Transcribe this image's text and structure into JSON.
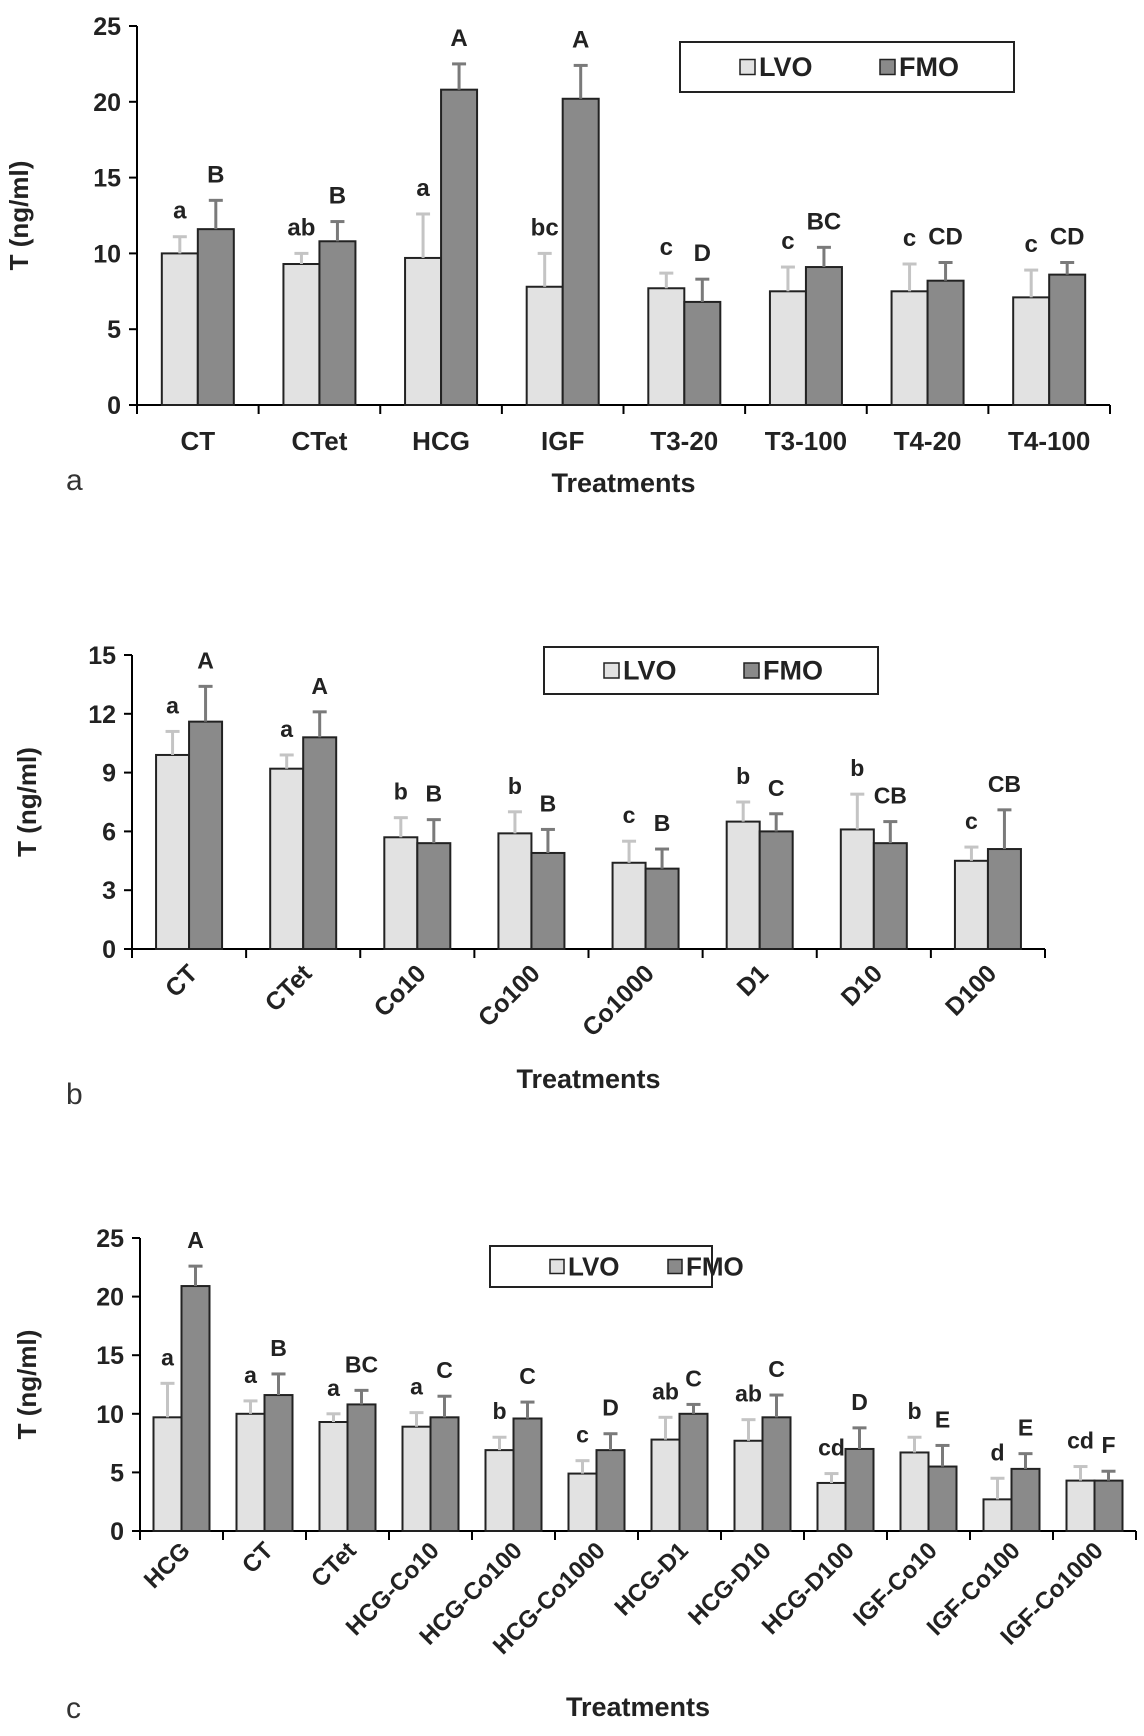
{
  "chart_data": [
    {
      "panel_label": "a",
      "type": "bar",
      "ylabel": "T (ng/ml)",
      "xlabel": "Treatments",
      "ylim": [
        0,
        25
      ],
      "yticks": [
        0,
        5,
        10,
        15,
        20,
        25
      ],
      "grid": false,
      "legend": "top-right",
      "categories": [
        "CT",
        "CTet",
        "HCG",
        "IGF",
        "T3-20",
        "T3-100",
        "T4-20",
        "T4-100"
      ],
      "series": [
        {
          "name": "LVO",
          "color": "#e2e2e2",
          "values": [
            10.0,
            9.3,
            9.7,
            7.8,
            7.7,
            7.5,
            7.5,
            7.1
          ],
          "errors": [
            1.1,
            0.7,
            2.9,
            2.2,
            1.0,
            1.6,
            1.8,
            1.8
          ],
          "letters": [
            "a",
            "ab",
            "a",
            "bc",
            "c",
            "c",
            "c",
            "c"
          ]
        },
        {
          "name": "FMO",
          "color": "#8a8a8a",
          "values": [
            11.6,
            10.8,
            20.8,
            20.2,
            6.8,
            9.1,
            8.2,
            8.6
          ],
          "errors": [
            1.9,
            1.3,
            1.7,
            2.2,
            1.5,
            1.3,
            1.2,
            0.8
          ],
          "letters": [
            "B",
            "B",
            "A",
            "A",
            "D",
            "BC",
            "CD",
            "CD"
          ]
        }
      ]
    },
    {
      "panel_label": "b",
      "type": "bar",
      "ylabel": "T (ng/ml)",
      "xlabel": "Treatments",
      "ylim": [
        0,
        15
      ],
      "yticks": [
        0,
        3,
        6,
        9,
        12,
        15
      ],
      "grid": false,
      "legend": "top-right",
      "categories": [
        "CT",
        "CTet",
        "Co10",
        "Co100",
        "Co1000",
        "D1",
        "D10",
        "D100"
      ],
      "series": [
        {
          "name": "LVO",
          "color": "#e2e2e2",
          "values": [
            9.9,
            9.2,
            5.7,
            5.9,
            4.4,
            6.5,
            6.1,
            4.5
          ],
          "errors": [
            1.2,
            0.7,
            1.0,
            1.1,
            1.1,
            1.0,
            1.8,
            0.7
          ],
          "letters": [
            "a",
            "a",
            "b",
            "b",
            "c",
            "b",
            "b",
            "c"
          ]
        },
        {
          "name": "FMO",
          "color": "#8a8a8a",
          "values": [
            11.6,
            10.8,
            5.4,
            4.9,
            4.1,
            6.0,
            5.4,
            5.1
          ],
          "errors": [
            1.8,
            1.3,
            1.2,
            1.2,
            1.0,
            0.9,
            1.1,
            2.0
          ],
          "letters": [
            "A",
            "A",
            "B",
            "B",
            "B",
            "C",
            "CB",
            "CB"
          ]
        }
      ]
    },
    {
      "panel_label": "c",
      "type": "bar",
      "ylabel": "T (ng/ml)",
      "xlabel": "Treatments",
      "ylim": [
        0,
        25
      ],
      "yticks": [
        0,
        5,
        10,
        15,
        20,
        25
      ],
      "grid": false,
      "legend": "top-center",
      "categories": [
        "HCG",
        "CT",
        "CTet",
        "HCG-Co10",
        "HCG-Co100",
        "HCG-Co1000",
        "HCG-D1",
        "HCG-D10",
        "HCG-D100",
        "IGF-Co10",
        "IGF-Co100",
        "IGF-Co1000"
      ],
      "series": [
        {
          "name": "LVO",
          "color": "#e2e2e2",
          "values": [
            9.7,
            10.0,
            9.3,
            8.9,
            6.9,
            4.9,
            7.8,
            7.7,
            4.1,
            6.7,
            2.7,
            4.3
          ],
          "errors": [
            2.9,
            1.1,
            0.7,
            1.2,
            1.1,
            1.1,
            1.9,
            1.8,
            0.8,
            1.3,
            1.8,
            1.2
          ],
          "letters": [
            "a",
            "a",
            "a",
            "a",
            "b",
            "c",
            "ab",
            "ab",
            "cd",
            "b",
            "d",
            "cd"
          ]
        },
        {
          "name": "FMO",
          "color": "#8a8a8a",
          "values": [
            20.9,
            11.6,
            10.8,
            9.7,
            9.6,
            6.9,
            10.0,
            9.7,
            7.0,
            5.5,
            5.3,
            4.3
          ],
          "errors": [
            1.7,
            1.8,
            1.2,
            1.8,
            1.4,
            1.4,
            0.8,
            1.9,
            1.8,
            1.8,
            1.3,
            0.8
          ],
          "letters": [
            "A",
            "B",
            "BC",
            "C",
            "C",
            "D",
            "C",
            "C",
            "D",
            "E",
            "E",
            "F"
          ]
        }
      ]
    }
  ]
}
